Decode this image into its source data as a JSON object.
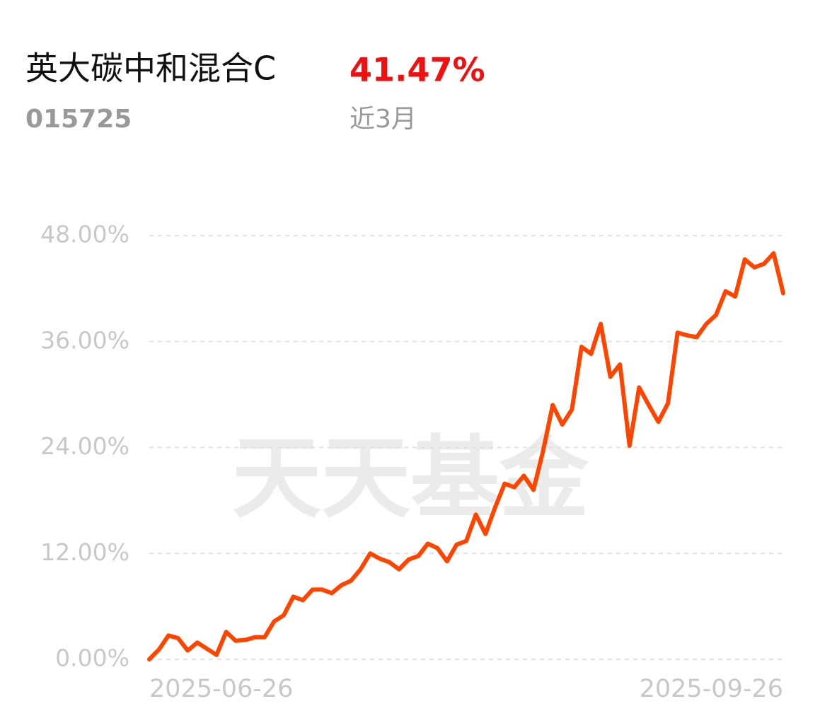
{
  "header": {
    "fund_name": "英大碳中和混合C",
    "fund_code": "015725",
    "return": "41.47%",
    "period": "近3月"
  },
  "watermark": "天天基金",
  "chart_data": {
    "type": "line",
    "categories": [
      "2025-06-26",
      null,
      null,
      null,
      null,
      null,
      null,
      null,
      null,
      null,
      null,
      null,
      null,
      null,
      null,
      null,
      null,
      null,
      null,
      null,
      null,
      null,
      null,
      null,
      null,
      null,
      null,
      null,
      null,
      null,
      null,
      null,
      null,
      null,
      null,
      null,
      null,
      null,
      null,
      null,
      null,
      null,
      null,
      null,
      null,
      null,
      null,
      null,
      null,
      null,
      null,
      null,
      null,
      null,
      null,
      null,
      null,
      null,
      null,
      null,
      null,
      null,
      null,
      null,
      null,
      null,
      "2025-09-26"
    ],
    "series": [
      {
        "name": "英大碳中和混合C",
        "color": "#ff4400",
        "values": [
          0,
          1.1,
          2.7,
          2.4,
          1.0,
          1.9,
          1.2,
          0.5,
          3.1,
          2.1,
          2.2,
          2.5,
          2.5,
          4.3,
          5.0,
          7.1,
          6.7,
          7.9,
          7.9,
          7.5,
          8.4,
          8.9,
          10.2,
          12.0,
          11.4,
          11.0,
          10.2,
          11.3,
          11.7,
          13.1,
          12.6,
          11.1,
          13.0,
          13.4,
          16.4,
          14.2,
          17.2,
          19.9,
          19.5,
          20.8,
          19.2,
          23.6,
          28.8,
          26.6,
          28.3,
          35.4,
          34.6,
          38.0,
          32.0,
          33.4,
          24.2,
          30.8,
          28.8,
          26.9,
          29.0,
          37.0,
          36.7,
          36.5,
          38.0,
          39.0,
          41.7,
          41.1,
          45.3,
          44.4,
          44.8,
          46.0,
          41.47
        ]
      }
    ],
    "ylim": [
      0,
      48
    ],
    "yticks": [
      {
        "value": 0,
        "label": "0.00%"
      },
      {
        "value": 12,
        "label": "12.00%"
      },
      {
        "value": 24,
        "label": "24.00%"
      },
      {
        "value": 36,
        "label": "36.00%"
      },
      {
        "value": 48,
        "label": "48.00%"
      }
    ],
    "grid": true
  }
}
